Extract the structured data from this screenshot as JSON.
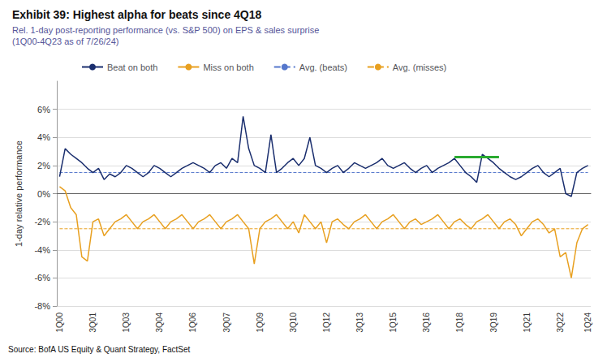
{
  "chart_data": {
    "type": "line",
    "title": "Exhibit 39: Highest alpha for beats since 4Q18",
    "subtitle": "Rel. 1-day post-reporting performance (vs. S&P 500) on EPS & sales surprise\n(1Q00-4Q23 as of 7/26/24)",
    "ylabel": "1-day relative performance",
    "source": "Source: BofA US Equity & Quant Strategy, FactSet",
    "legend": "top left",
    "grid": true,
    "ylim": [
      -8,
      8
    ],
    "yticks": [
      {
        "value": -8,
        "label": "-8%"
      },
      {
        "value": -6,
        "label": "-6%"
      },
      {
        "value": -4,
        "label": "-4%"
      },
      {
        "value": -2,
        "label": "-2%"
      },
      {
        "value": 0,
        "label": "0%"
      },
      {
        "value": 2,
        "label": "2%"
      },
      {
        "value": 4,
        "label": "4%"
      },
      {
        "value": 6,
        "label": "6%"
      }
    ],
    "categories": [
      "1Q00",
      null,
      null,
      null,
      null,
      null,
      "3Q01",
      null,
      null,
      null,
      null,
      null,
      "1Q03",
      null,
      null,
      null,
      null,
      null,
      "3Q04",
      null,
      null,
      null,
      null,
      null,
      "1Q06",
      null,
      null,
      null,
      null,
      null,
      "3Q07",
      null,
      null,
      null,
      null,
      null,
      "1Q09",
      null,
      null,
      null,
      null,
      null,
      "3Q10",
      null,
      null,
      null,
      null,
      null,
      "1Q12",
      null,
      null,
      null,
      null,
      null,
      "3Q13",
      null,
      null,
      null,
      null,
      null,
      "1Q15",
      null,
      null,
      null,
      null,
      null,
      "3Q16",
      null,
      null,
      null,
      null,
      null,
      "1Q18",
      null,
      null,
      null,
      null,
      null,
      "3Q19",
      null,
      null,
      null,
      null,
      null,
      "1Q21",
      null,
      null,
      null,
      null,
      null,
      "3Q22",
      null,
      null,
      null,
      null,
      "1Q24"
    ],
    "series": [
      {
        "name": "Beat on both",
        "color": "#1a2e6e",
        "values": [
          1.2,
          3.2,
          2.8,
          2.5,
          2.2,
          1.8,
          1.5,
          1.8,
          1.0,
          1.4,
          1.2,
          1.5,
          2.0,
          1.8,
          1.5,
          1.2,
          1.5,
          2.0,
          1.8,
          1.5,
          1.2,
          1.5,
          1.8,
          2.0,
          2.2,
          2.0,
          1.8,
          1.5,
          2.0,
          2.2,
          1.8,
          2.5,
          2.2,
          5.5,
          3.2,
          2.0,
          1.8,
          1.5,
          4.2,
          1.5,
          1.8,
          2.2,
          2.5,
          2.0,
          2.5,
          4.0,
          2.0,
          1.8,
          1.5,
          1.8,
          2.0,
          1.5,
          1.8,
          2.2,
          2.0,
          1.8,
          2.0,
          2.2,
          2.5,
          2.0,
          1.8,
          2.0,
          2.2,
          1.8,
          1.5,
          1.8,
          2.0,
          1.5,
          1.8,
          2.0,
          2.2,
          2.5,
          2.0,
          1.5,
          1.2,
          0.8,
          2.8,
          2.5,
          2.2,
          1.8,
          1.5,
          1.2,
          1.0,
          1.2,
          1.5,
          1.8,
          2.0,
          1.5,
          1.2,
          1.5,
          1.8,
          0.0,
          -0.2,
          1.5,
          1.8,
          2.0
        ]
      },
      {
        "name": "Miss on both",
        "color": "#e8a020",
        "values": [
          0.5,
          0.2,
          -1.0,
          -1.5,
          -4.5,
          -4.8,
          -2.0,
          -1.8,
          -3.0,
          -2.5,
          -2.0,
          -1.8,
          -1.5,
          -2.0,
          -2.5,
          -2.0,
          -1.8,
          -1.5,
          -2.0,
          -2.5,
          -2.0,
          -1.8,
          -1.5,
          -2.0,
          -2.5,
          -2.0,
          -1.8,
          -1.5,
          -2.0,
          -2.5,
          -2.0,
          -1.8,
          -1.5,
          -2.0,
          -2.5,
          -5.0,
          -2.5,
          -2.0,
          -1.8,
          -1.5,
          -2.0,
          -2.5,
          -2.0,
          -2.8,
          -1.5,
          -2.0,
          -2.5,
          -2.0,
          -3.5,
          -2.0,
          -1.8,
          -2.2,
          -2.5,
          -2.0,
          -1.8,
          -1.5,
          -2.0,
          -2.5,
          -2.0,
          -1.8,
          -1.5,
          -2.0,
          -2.5,
          -2.0,
          -1.8,
          -2.2,
          -2.0,
          -1.8,
          -1.5,
          -2.0,
          -2.5,
          -2.0,
          -1.8,
          -2.2,
          -2.5,
          -2.0,
          -1.8,
          -1.5,
          -2.0,
          -2.5,
          -2.0,
          -1.8,
          -2.2,
          -3.0,
          -2.5,
          -2.0,
          -1.8,
          -2.2,
          -2.8,
          -2.5,
          -4.5,
          -4.2,
          -6.0,
          -3.5,
          -2.5,
          -2.2
        ]
      },
      {
        "name": "Avg. (beats)",
        "color": "#5577cc",
        "line_style": "dashed",
        "values": [
          1.5,
          1.5,
          1.5,
          1.5,
          1.5,
          1.5,
          1.5,
          1.5,
          1.5,
          1.5,
          1.5,
          1.5,
          1.5,
          1.5,
          1.5,
          1.5,
          1.5,
          1.5,
          1.5,
          1.5,
          1.5,
          1.5,
          1.5,
          1.5,
          1.5,
          1.5,
          1.5,
          1.5,
          1.5,
          1.5,
          1.5,
          1.5,
          1.5,
          1.5,
          1.5,
          1.5,
          1.5,
          1.5,
          1.5,
          1.5,
          1.5,
          1.5,
          1.5,
          1.5,
          1.5,
          1.5,
          1.5,
          1.5,
          1.5,
          1.5,
          1.5,
          1.5,
          1.5,
          1.5,
          1.5,
          1.5,
          1.5,
          1.5,
          1.5,
          1.5,
          1.5,
          1.5,
          1.5,
          1.5,
          1.5,
          1.5,
          1.5,
          1.5,
          1.5,
          1.5,
          1.5,
          1.5,
          1.5,
          1.5,
          1.5,
          1.5,
          1.5,
          1.5,
          1.5,
          1.5,
          1.5,
          1.5,
          1.5,
          1.5,
          1.5,
          1.5,
          1.5,
          1.5,
          1.5,
          1.5,
          1.5,
          1.5,
          1.5,
          1.5,
          1.5,
          1.5
        ]
      },
      {
        "name": "Avg. (misses)",
        "color": "#e8a020",
        "line_style": "dashed",
        "values": [
          -2.5,
          -2.5,
          -2.5,
          -2.5,
          -2.5,
          -2.5,
          -2.5,
          -2.5,
          -2.5,
          -2.5,
          -2.5,
          -2.5,
          -2.5,
          -2.5,
          -2.5,
          -2.5,
          -2.5,
          -2.5,
          -2.5,
          -2.5,
          -2.5,
          -2.5,
          -2.5,
          -2.5,
          -2.5,
          -2.5,
          -2.5,
          -2.5,
          -2.5,
          -2.5,
          -2.5,
          -2.5,
          -2.5,
          -2.5,
          -2.5,
          -2.5,
          -2.5,
          -2.5,
          -2.5,
          -2.5,
          -2.5,
          -2.5,
          -2.5,
          -2.5,
          -2.5,
          -2.5,
          -2.5,
          -2.5,
          -2.5,
          -2.5,
          -2.5,
          -2.5,
          -2.5,
          -2.5,
          -2.5,
          -2.5,
          -2.5,
          -2.5,
          -2.5,
          -2.5,
          -2.5,
          -2.5,
          -2.5,
          -2.5,
          -2.5,
          -2.5,
          -2.5,
          -2.5,
          -2.5,
          -2.5,
          -2.5,
          -2.5,
          -2.5,
          -2.5,
          -2.5,
          -2.5,
          -2.5,
          -2.5,
          -2.5,
          -2.5,
          -2.5,
          -2.5,
          -2.5,
          -2.5,
          -2.5,
          -2.5,
          -2.5,
          -2.5,
          -2.5,
          -2.5,
          -2.5,
          -2.5,
          -2.5,
          -2.5,
          -2.5,
          -2.5
        ]
      },
      {
        "color": "#2aaa30",
        "values": [
          null,
          null,
          null,
          null,
          null,
          null,
          null,
          null,
          null,
          null,
          null,
          null,
          null,
          null,
          null,
          null,
          null,
          null,
          null,
          null,
          null,
          null,
          null,
          null,
          null,
          null,
          null,
          null,
          null,
          null,
          null,
          null,
          null,
          null,
          null,
          null,
          null,
          null,
          null,
          null,
          null,
          null,
          null,
          null,
          null,
          null,
          null,
          null,
          null,
          null,
          null,
          null,
          null,
          null,
          null,
          null,
          null,
          null,
          null,
          null,
          null,
          null,
          null,
          null,
          null,
          null,
          null,
          null,
          null,
          null,
          null,
          2.6,
          2.6,
          2.6,
          2.6,
          2.6,
          2.6,
          2.6,
          2.6,
          2.6,
          null,
          null,
          null,
          null,
          null,
          null,
          null,
          null,
          null,
          null,
          null,
          null,
          null,
          null,
          null,
          null
        ]
      }
    ]
  }
}
